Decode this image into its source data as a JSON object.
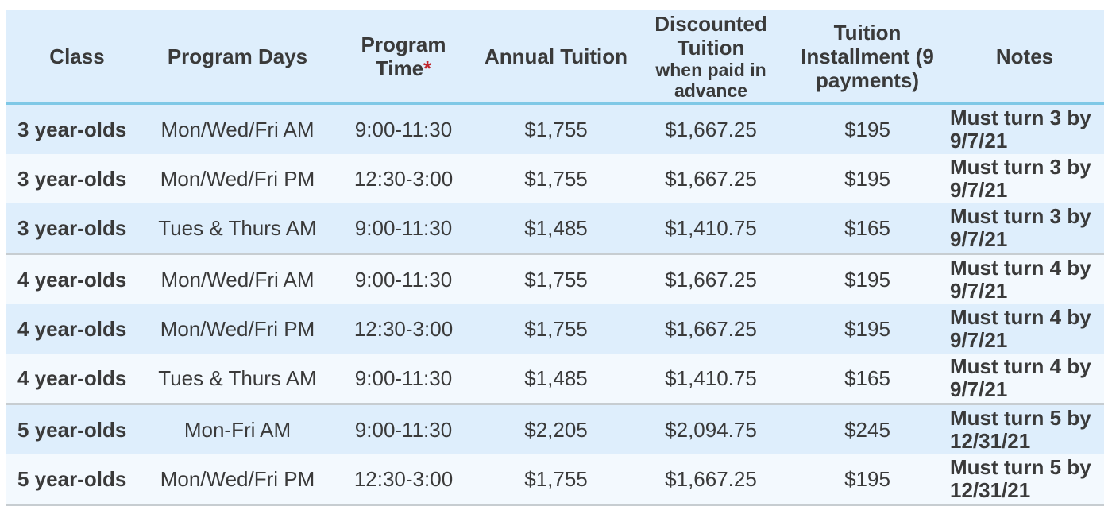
{
  "header": {
    "class": "Class",
    "program_days": "Program Days",
    "program_time": "Program Time",
    "program_time_mark": "*",
    "annual_tuition": "Annual Tuition",
    "discounted_line1": "Discounted Tuition",
    "discounted_line2": "when paid in advance",
    "installment": "Tuition Installment (9 payments)",
    "notes": "Notes"
  },
  "rows": [
    {
      "class": "3 year-olds",
      "days": "Mon/Wed/Fri AM",
      "time": "9:00-11:30",
      "annual": "$1,755",
      "discounted": "$1,667.25",
      "installment": "$195",
      "notes": "Must turn 3 by 9/7/21"
    },
    {
      "class": "3 year-olds",
      "days": "Mon/Wed/Fri PM",
      "time": "12:30-3:00",
      "annual": "$1,755",
      "discounted": "$1,667.25",
      "installment": "$195",
      "notes": "Must turn 3 by 9/7/21"
    },
    {
      "class": "3 year-olds",
      "days": "Tues & Thurs AM",
      "time": "9:00-11:30",
      "annual": "$1,485",
      "discounted": "$1,410.75",
      "installment": "$165",
      "notes": "Must turn 3 by 9/7/21"
    },
    {
      "class": "4 year-olds",
      "days": "Mon/Wed/Fri AM",
      "time": "9:00-11:30",
      "annual": "$1,755",
      "discounted": "$1,667.25",
      "installment": "$195",
      "notes": "Must turn 4 by 9/7/21"
    },
    {
      "class": "4 year-olds",
      "days": "Mon/Wed/Fri PM",
      "time": "12:30-3:00",
      "annual": "$1,755",
      "discounted": "$1,667.25",
      "installment": "$195",
      "notes": "Must turn 4 by 9/7/21"
    },
    {
      "class": "4 year-olds",
      "days": "Tues & Thurs AM",
      "time": "9:00-11:30",
      "annual": "$1,485",
      "discounted": "$1,410.75",
      "installment": "$165",
      "notes": "Must turn 4 by 9/7/21"
    },
    {
      "class": "5 year-olds",
      "days": "Mon-Fri AM",
      "time": "9:00-11:30",
      "annual": "$2,205",
      "discounted": "$2,094.75",
      "installment": "$245",
      "notes": "Must turn 5 by 12/31/21"
    },
    {
      "class": "5 year-olds",
      "days": "Mon/Wed/Fri PM",
      "time": "12:30-3:00",
      "annual": "$1,755",
      "discounted": "$1,667.25",
      "installment": "$195",
      "notes": "Must turn 5 by 12/31/21"
    }
  ]
}
